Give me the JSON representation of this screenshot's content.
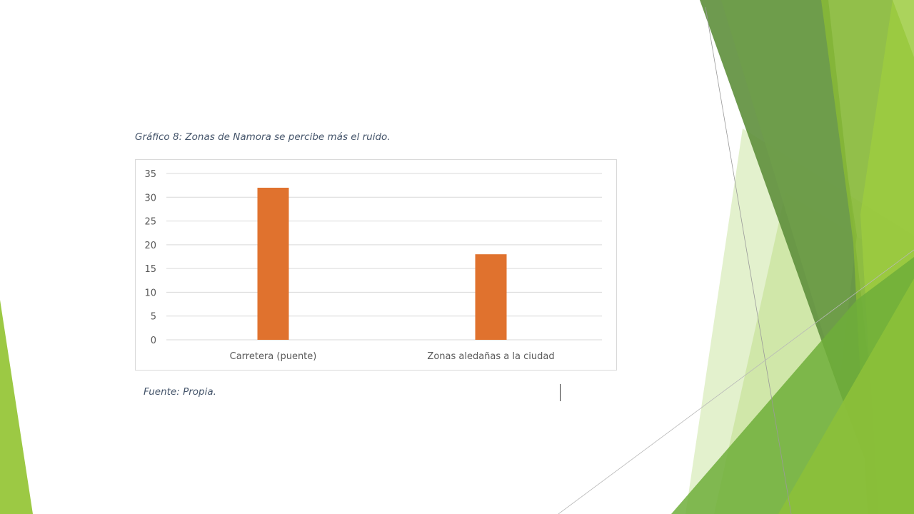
{
  "caption": {
    "title": "Gráfico 8: Zonas de Namora se percibe más el ruido.",
    "source": "Fuente: Propia."
  },
  "colors": {
    "bar": "#e0722e",
    "grid": "#d9d9d9",
    "tick_text": "#595959",
    "caption": "#44546a",
    "decor_dark_green": "#5e8f3c",
    "decor_light_green": "#8cc03a"
  },
  "chart_data": {
    "type": "bar",
    "categories": [
      "Carretera (puente)",
      "Zonas aledañas a la ciudad"
    ],
    "values": [
      32,
      18
    ],
    "title": "",
    "xlabel": "",
    "ylabel": "",
    "ylim": [
      0,
      35
    ],
    "yticks": [
      0,
      5,
      10,
      15,
      20,
      25,
      30,
      35
    ],
    "grid": true,
    "legend": "none"
  }
}
